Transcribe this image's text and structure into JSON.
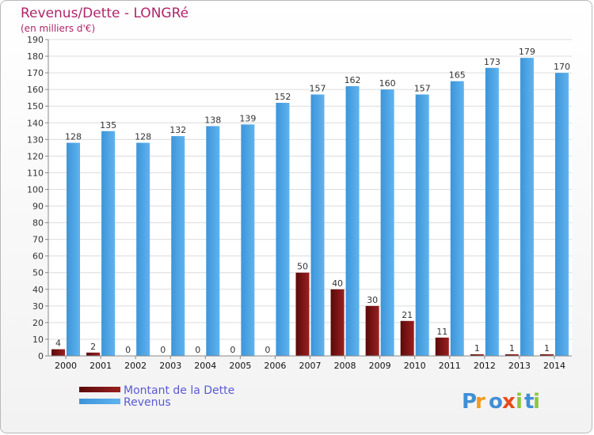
{
  "chart_data": {
    "type": "bar",
    "title": "Revenus/Dette - LONGRé",
    "subtitle": "(en milliers d'€)",
    "categories": [
      "2000",
      "2001",
      "2002",
      "2003",
      "2004",
      "2005",
      "2006",
      "2007",
      "2008",
      "2009",
      "2010",
      "2011",
      "2012",
      "2013",
      "2014"
    ],
    "series": [
      {
        "name": "Montant de la Dette",
        "color": "#7a1010",
        "values": [
          4,
          2,
          0,
          0,
          0,
          0,
          0,
          50,
          40,
          30,
          21,
          11,
          1,
          1,
          1
        ]
      },
      {
        "name": "Revenus",
        "color": "#4da6e8",
        "values": [
          128,
          135,
          128,
          132,
          138,
          139,
          152,
          157,
          162,
          160,
          157,
          165,
          173,
          179,
          170
        ]
      }
    ],
    "ylim": [
      0,
      190
    ],
    "yticks": [
      0,
      10,
      20,
      30,
      40,
      50,
      60,
      70,
      80,
      90,
      100,
      110,
      120,
      130,
      140,
      150,
      160,
      170,
      180,
      190
    ],
    "grid": true,
    "legend": "bottom-left"
  },
  "logo": {
    "letters": [
      "P",
      "r",
      "o",
      "x",
      "i",
      "t",
      "i"
    ],
    "colors": [
      "#3f8fd6",
      "#f29a1c",
      "#3f8fd6",
      "#e84a1a",
      "#8cc63f",
      "#3f8fd6",
      "#8cc63f"
    ]
  }
}
